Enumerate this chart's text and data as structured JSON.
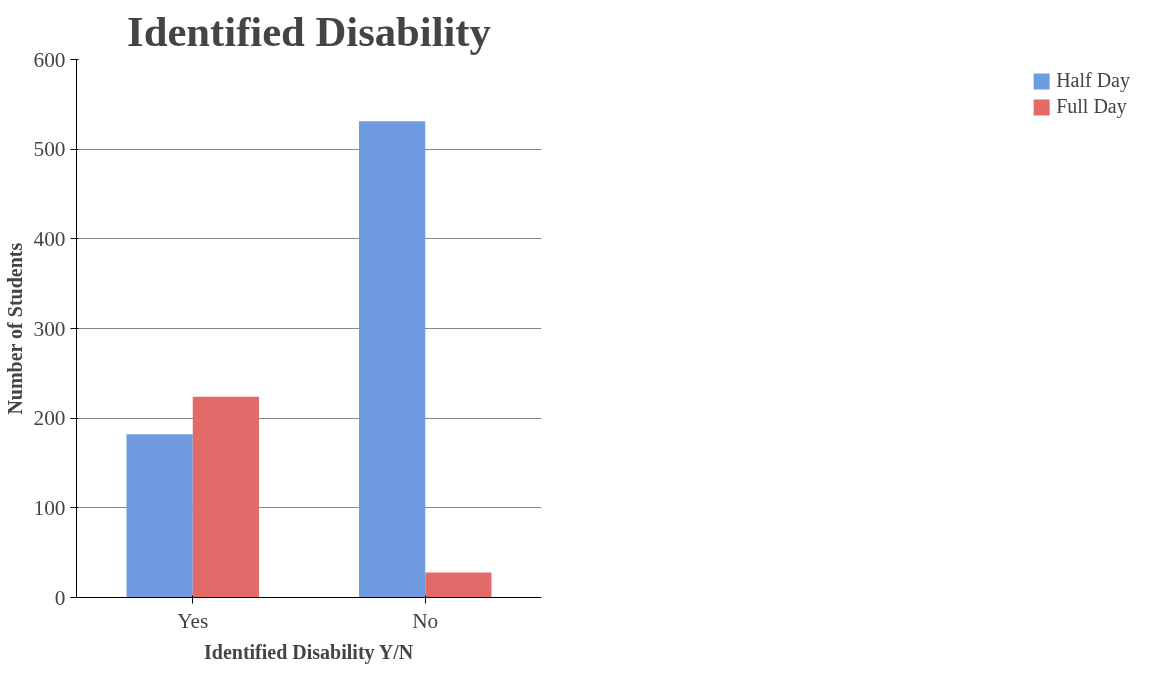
{
  "chart_data": {
    "type": "bar",
    "title": "Identified Disability",
    "xlabel": "Identified Disability Y/N",
    "ylabel": "Number of Students",
    "categories": [
      "Yes",
      "No"
    ],
    "series": [
      {
        "name": "Half Day",
        "color": "#6f9be0",
        "values": [
          182,
          531
        ]
      },
      {
        "name": "Full Day",
        "color": "#e46a6a",
        "values": [
          224,
          28
        ]
      }
    ],
    "ylim": [
      0,
      600
    ],
    "yticks": [
      0,
      100,
      200,
      300,
      400,
      500,
      600
    ],
    "grid": "y",
    "legend": "right"
  }
}
